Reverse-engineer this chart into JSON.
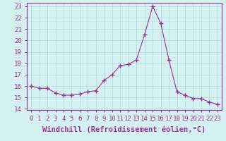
{
  "x": [
    0,
    1,
    2,
    3,
    4,
    5,
    6,
    7,
    8,
    9,
    10,
    11,
    12,
    13,
    14,
    15,
    16,
    17,
    18,
    19,
    20,
    21,
    22,
    23
  ],
  "y": [
    16.0,
    15.8,
    15.8,
    15.4,
    15.2,
    15.2,
    15.3,
    15.5,
    15.6,
    16.5,
    17.0,
    17.8,
    17.9,
    18.3,
    20.5,
    23.0,
    21.5,
    18.3,
    15.5,
    15.2,
    14.9,
    14.9,
    14.6,
    14.4
  ],
  "line_color": "#993399",
  "marker": "+",
  "marker_size": 4,
  "bg_color": "#d5f0f0",
  "grid_color": "#aadddd",
  "xlabel": "Windchill (Refroidissement éolien,°C)",
  "xlabel_fontsize": 7.5,
  "tick_fontsize": 6.5,
  "ylim": [
    13.9,
    23.3
  ],
  "xlim": [
    -0.5,
    23.5
  ],
  "yticks": [
    14,
    15,
    16,
    17,
    18,
    19,
    20,
    21,
    22,
    23
  ],
  "xticks": [
    0,
    1,
    2,
    3,
    4,
    5,
    6,
    7,
    8,
    9,
    10,
    11,
    12,
    13,
    14,
    15,
    16,
    17,
    18,
    19,
    20,
    21,
    22,
    23
  ],
  "spine_color": "#993399",
  "axis_label_color": "#993399",
  "tick_color": "#993399"
}
